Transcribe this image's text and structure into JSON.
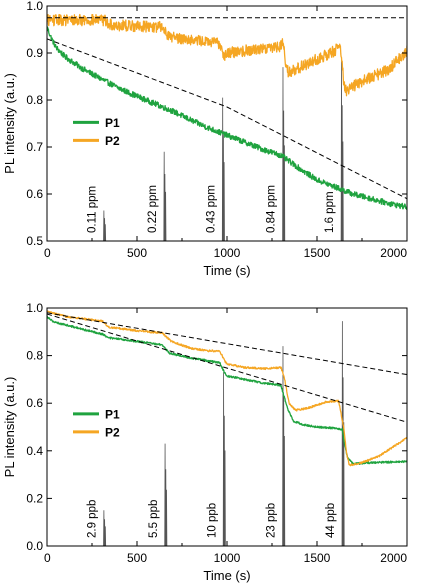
{
  "chart_data": [
    {
      "type": "line",
      "title": "",
      "xlabel": "Time (s)",
      "ylabel": "PL intensity (a.u.)",
      "xlim": [
        0,
        2000
      ],
      "ylim": [
        0.5,
        1.0
      ],
      "xticks": [
        0,
        500,
        1000,
        1500,
        2000
      ],
      "yticks": [
        0.5,
        0.6,
        0.7,
        0.8,
        0.9,
        1.0
      ],
      "xtick_labels": [
        "0",
        "500",
        "1000",
        "1500",
        "2000"
      ],
      "ytick_labels": [
        "0.5",
        "0.6",
        "0.7",
        "0.8",
        "0.9",
        "1.0"
      ],
      "grid": false,
      "legend_position": "center-left",
      "series": [
        {
          "name": "P1",
          "color": "#1fa33f",
          "noise": 0.006,
          "points": [
            [
              0,
              0.955
            ],
            [
              20,
              0.935
            ],
            [
              50,
              0.912
            ],
            [
              100,
              0.892
            ],
            [
              200,
              0.866
            ],
            [
              300,
              0.845
            ],
            [
              400,
              0.825
            ],
            [
              500,
              0.808
            ],
            [
              600,
              0.792
            ],
            [
              700,
              0.776
            ],
            [
              800,
              0.757
            ],
            [
              900,
              0.74
            ],
            [
              1000,
              0.725
            ],
            [
              1100,
              0.71
            ],
            [
              1200,
              0.695
            ],
            [
              1300,
              0.682
            ],
            [
              1400,
              0.655
            ],
            [
              1500,
              0.63
            ],
            [
              1600,
              0.615
            ],
            [
              1700,
              0.6
            ],
            [
              1800,
              0.59
            ],
            [
              1900,
              0.58
            ],
            [
              2000,
              0.572
            ]
          ]
        },
        {
          "name": "P2",
          "color": "#f5a623",
          "noise": 0.012,
          "points": [
            [
              0,
              0.97
            ],
            [
              320,
              0.97
            ],
            [
              345,
              0.96
            ],
            [
              640,
              0.955
            ],
            [
              680,
              0.935
            ],
            [
              960,
              0.92
            ],
            [
              985,
              0.895
            ],
            [
              1000,
              0.9
            ],
            [
              1300,
              0.915
            ],
            [
              1310,
              0.925
            ],
            [
              1330,
              0.87
            ],
            [
              1340,
              0.86
            ],
            [
              1380,
              0.865
            ],
            [
              1600,
              0.905
            ],
            [
              1630,
              0.915
            ],
            [
              1650,
              0.835
            ],
            [
              1660,
              0.82
            ],
            [
              1750,
              0.84
            ],
            [
              1900,
              0.865
            ],
            [
              2000,
              0.905
            ]
          ]
        }
      ],
      "reference_lines": [
        {
          "style": "dashed",
          "points": [
            [
              0,
              0.975
            ],
            [
              2000,
              0.975
            ]
          ]
        },
        {
          "style": "dashed",
          "points": [
            [
              0,
              0.93
            ],
            [
              1000,
              0.785
            ],
            [
              2000,
              0.59
            ]
          ]
        }
      ],
      "spikes": [
        {
          "x": 320,
          "peak": 0.565,
          "label": "0.11 ppm"
        },
        {
          "x": 655,
          "peak": 0.69,
          "label": "0.22 ppm"
        },
        {
          "x": 980,
          "peak": 0.805,
          "label": "0.43 ppm"
        },
        {
          "x": 1315,
          "peak": 0.87,
          "label": "0.84 ppm"
        },
        {
          "x": 1640,
          "peak": 0.885,
          "label": "1.6 ppm"
        }
      ]
    },
    {
      "type": "line",
      "title": "",
      "xlabel": "Time (s)",
      "ylabel": "PL intensity (a.u.)",
      "xlim": [
        0,
        2000
      ],
      "ylim": [
        0.0,
        1.0
      ],
      "xticks": [
        0,
        500,
        1000,
        1500,
        2000
      ],
      "yticks": [
        0.0,
        0.2,
        0.4,
        0.6,
        0.8,
        1.0
      ],
      "xtick_labels": [
        "0",
        "500",
        "1000",
        "1500",
        "2000"
      ],
      "ytick_labels": [
        "0.0",
        "0.2",
        "0.4",
        "0.6",
        "0.8",
        "1.0"
      ],
      "grid": false,
      "legend_position": "center-left",
      "series": [
        {
          "name": "P1",
          "color": "#1fa33f",
          "noise": 0.004,
          "points": [
            [
              0,
              0.965
            ],
            [
              40,
              0.94
            ],
            [
              100,
              0.93
            ],
            [
              200,
              0.91
            ],
            [
              310,
              0.89
            ],
            [
              340,
              0.875
            ],
            [
              500,
              0.86
            ],
            [
              640,
              0.845
            ],
            [
              680,
              0.81
            ],
            [
              800,
              0.79
            ],
            [
              960,
              0.77
            ],
            [
              985,
              0.73
            ],
            [
              1000,
              0.715
            ],
            [
              1100,
              0.7
            ],
            [
              1200,
              0.685
            ],
            [
              1300,
              0.675
            ],
            [
              1320,
              0.62
            ],
            [
              1340,
              0.57
            ],
            [
              1370,
              0.525
            ],
            [
              1420,
              0.51
            ],
            [
              1500,
              0.5
            ],
            [
              1600,
              0.495
            ],
            [
              1640,
              0.49
            ],
            [
              1655,
              0.42
            ],
            [
              1670,
              0.37
            ],
            [
              1700,
              0.345
            ],
            [
              1800,
              0.35
            ],
            [
              2000,
              0.355
            ]
          ]
        },
        {
          "name": "P2",
          "color": "#f5a623",
          "noise": 0.004,
          "points": [
            [
              0,
              0.985
            ],
            [
              100,
              0.965
            ],
            [
              250,
              0.95
            ],
            [
              310,
              0.945
            ],
            [
              340,
              0.92
            ],
            [
              500,
              0.905
            ],
            [
              640,
              0.895
            ],
            [
              690,
              0.86
            ],
            [
              800,
              0.83
            ],
            [
              900,
              0.82
            ],
            [
              960,
              0.82
            ],
            [
              985,
              0.78
            ],
            [
              1000,
              0.765
            ],
            [
              1100,
              0.75
            ],
            [
              1200,
              0.745
            ],
            [
              1300,
              0.75
            ],
            [
              1320,
              0.7
            ],
            [
              1345,
              0.6
            ],
            [
              1380,
              0.57
            ],
            [
              1450,
              0.58
            ],
            [
              1550,
              0.605
            ],
            [
              1620,
              0.61
            ],
            [
              1650,
              0.49
            ],
            [
              1665,
              0.385
            ],
            [
              1680,
              0.34
            ],
            [
              1750,
              0.35
            ],
            [
              1850,
              0.38
            ],
            [
              2000,
              0.455
            ]
          ]
        }
      ],
      "reference_lines": [
        {
          "style": "dashed",
          "points": [
            [
              0,
              0.98
            ],
            [
              2000,
              0.72
            ]
          ]
        },
        {
          "style": "dashed",
          "points": [
            [
              0,
              0.975
            ],
            [
              2000,
              0.52
            ]
          ]
        }
      ],
      "spikes": [
        {
          "x": 320,
          "peak": 0.15,
          "label": "2.9 ppb"
        },
        {
          "x": 660,
          "peak": 0.43,
          "label": "5.5 ppb"
        },
        {
          "x": 985,
          "peak": 0.73,
          "label": "10 ppb"
        },
        {
          "x": 1315,
          "peak": 0.84,
          "label": "23 ppb"
        },
        {
          "x": 1645,
          "peak": 0.945,
          "label": "44 ppb"
        }
      ]
    }
  ]
}
